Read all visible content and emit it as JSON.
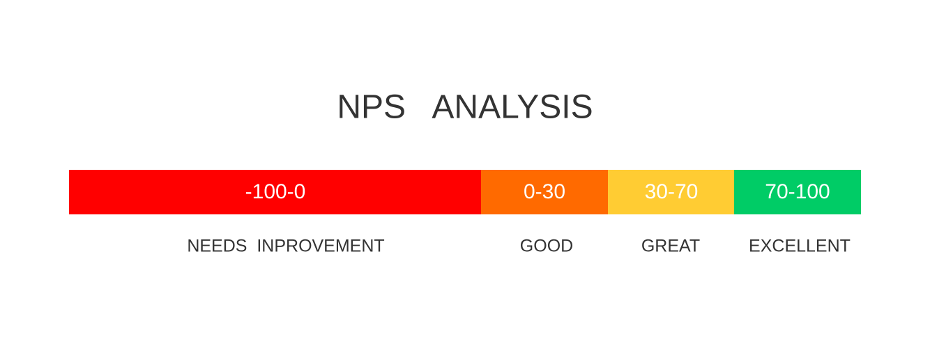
{
  "title": "NPS   ANALYSIS",
  "segments": [
    {
      "range": "-100-0",
      "label": "NEEDS  INPROVEMENT"
    },
    {
      "range": "0-30",
      "label": "GOOD"
    },
    {
      "range": "30-70",
      "label": "GREAT"
    },
    {
      "range": "70-100",
      "label": "EXCELLENT"
    }
  ]
}
